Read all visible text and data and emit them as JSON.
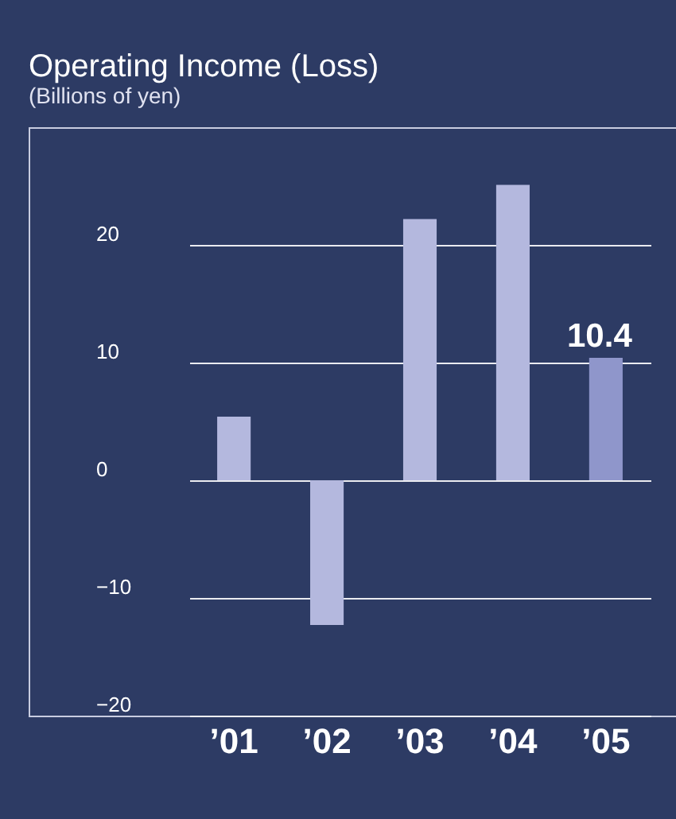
{
  "chart_data": {
    "type": "bar",
    "title": "Operating Income (Loss)",
    "subtitle": "(Billions of yen)",
    "categories": [
      "’01",
      "’02",
      "’03",
      "’04",
      "’05"
    ],
    "values": [
      5.4,
      -12.3,
      22.2,
      25.1,
      10.4
    ],
    "colors": [
      "#b4b8de",
      "#b4b8de",
      "#b4b8de",
      "#b4b8de",
      "#8f96cb"
    ],
    "value_labels": [
      null,
      null,
      null,
      null,
      "10.4"
    ],
    "ylim": [
      -20,
      30
    ],
    "yticks": [
      -20,
      -10,
      0,
      10,
      20
    ],
    "grid": "y"
  }
}
